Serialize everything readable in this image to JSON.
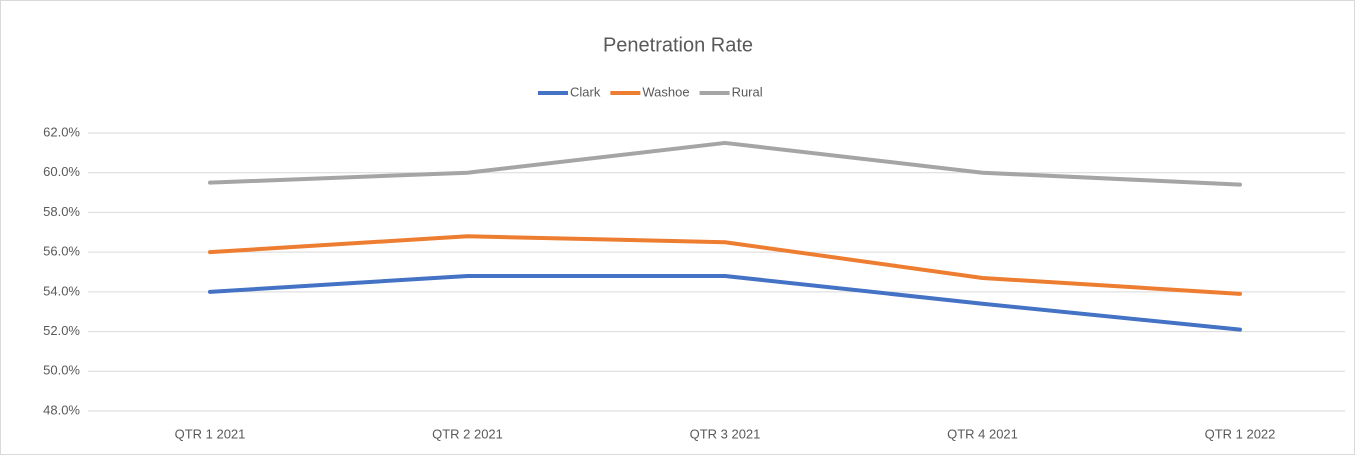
{
  "chart_data": {
    "type": "line",
    "title": "Penetration Rate",
    "categories": [
      "QTR 1 2021",
      "QTR 2 2021",
      "QTR 3 2021",
      "QTR 4 2021",
      "QTR 1 2022"
    ],
    "series": [
      {
        "name": "Clark",
        "color": "#4472c4",
        "values": [
          54.0,
          54.8,
          54.8,
          53.4,
          52.1
        ]
      },
      {
        "name": "Washoe",
        "color": "#ed7d31",
        "values": [
          56.0,
          56.8,
          56.5,
          54.7,
          53.9
        ]
      },
      {
        "name": "Rural",
        "color": "#a5a5a5",
        "values": [
          59.5,
          60.0,
          61.5,
          60.0,
          59.4
        ]
      }
    ],
    "ylim": [
      48,
      62
    ],
    "yticks": [
      {
        "value": 48,
        "label": "48.0%"
      },
      {
        "value": 50,
        "label": "50.0%"
      },
      {
        "value": 52,
        "label": "52.0%"
      },
      {
        "value": 54,
        "label": "54.0%"
      },
      {
        "value": 56,
        "label": "56.0%"
      },
      {
        "value": 58,
        "label": "58.0%"
      },
      {
        "value": 60,
        "label": "60.0%"
      },
      {
        "value": 62,
        "label": "62.0%"
      }
    ],
    "grid": true,
    "legend": "top"
  }
}
